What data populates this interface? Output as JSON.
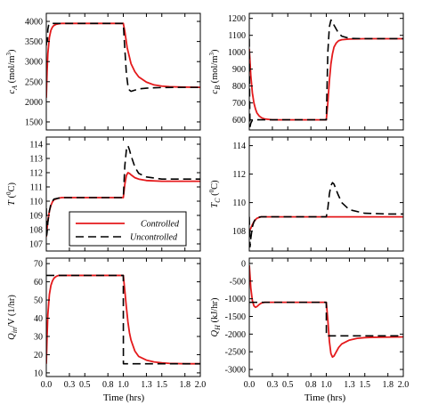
{
  "chart_data": [
    {
      "type": "line",
      "id": "ca",
      "ylabel_main": "c",
      "ylabel_sub": "A",
      "ylabel_unit": " (mol/m",
      "ylabel_sup": "3",
      "ylabel_close": ")",
      "xlim": [
        0,
        2
      ],
      "ylim": [
        1300,
        4200
      ],
      "yticks": [
        1500,
        2000,
        2500,
        3000,
        3500,
        4000
      ],
      "xticks": [
        0,
        0.3,
        0.5,
        0.8,
        1.0,
        1.3,
        1.5,
        1.8,
        2.0
      ],
      "series": [
        {
          "name": "Controlled",
          "style": "solid",
          "color": "#e41a1c",
          "x": [
            0,
            0.01,
            0.02,
            0.04,
            0.06,
            0.08,
            0.1,
            0.13,
            0.16,
            0.2,
            0.3,
            0.5,
            0.8,
            1.0,
            1.02,
            1.05,
            1.1,
            1.15,
            1.2,
            1.3,
            1.4,
            1.5,
            1.6,
            1.8,
            2.0
          ],
          "y": [
            2100,
            2750,
            3200,
            3600,
            3780,
            3860,
            3900,
            3930,
            3940,
            3950,
            3950,
            3950,
            3950,
            3950,
            3750,
            3350,
            2950,
            2750,
            2620,
            2490,
            2420,
            2390,
            2375,
            2365,
            2360
          ]
        },
        {
          "name": "Uncontrolled",
          "style": "dashed",
          "color": "#000000",
          "x": [
            0,
            0.01,
            0.015,
            0.02,
            0.03,
            0.05,
            0.1,
            0.3,
            0.5,
            0.8,
            1.0,
            1.02,
            1.04,
            1.06,
            1.08,
            1.1,
            1.15,
            1.2,
            1.3,
            1.5,
            1.8,
            2.0
          ],
          "y": [
            3400,
            3650,
            3500,
            3800,
            3900,
            3950,
            3950,
            3950,
            3950,
            3950,
            3950,
            3300,
            2700,
            2400,
            2290,
            2260,
            2290,
            2320,
            2340,
            2355,
            2360,
            2360
          ]
        }
      ]
    },
    {
      "type": "line",
      "id": "cb",
      "ylabel_main": "c",
      "ylabel_sub": "B",
      "ylabel_unit": " (mol/m",
      "ylabel_sup": "3",
      "ylabel_close": ")",
      "xlim": [
        0,
        2
      ],
      "ylim": [
        540,
        1230
      ],
      "yticks": [
        600,
        700,
        800,
        900,
        1000,
        1100,
        1200
      ],
      "xticks": [
        0,
        0.3,
        0.5,
        0.8,
        1.0,
        1.3,
        1.5,
        1.8,
        2.0
      ],
      "series": [
        {
          "name": "Controlled",
          "style": "solid",
          "color": "#e41a1c",
          "x": [
            0,
            0.02,
            0.04,
            0.06,
            0.08,
            0.1,
            0.13,
            0.16,
            0.2,
            0.3,
            0.5,
            0.8,
            1.0,
            1.02,
            1.04,
            1.06,
            1.08,
            1.1,
            1.13,
            1.16,
            1.2,
            1.3,
            1.5,
            1.8,
            2.0
          ],
          "y": [
            1020,
            860,
            760,
            700,
            665,
            640,
            622,
            612,
            605,
            600,
            600,
            600,
            600,
            700,
            830,
            930,
            990,
            1030,
            1055,
            1068,
            1074,
            1078,
            1080,
            1080,
            1080
          ]
        },
        {
          "name": "Uncontrolled",
          "style": "dashed",
          "color": "#000000",
          "x": [
            0,
            0.005,
            0.01,
            0.02,
            0.04,
            0.06,
            0.1,
            0.3,
            0.5,
            0.8,
            1.0,
            1.01,
            1.02,
            1.04,
            1.06,
            1.08,
            1.1,
            1.15,
            1.2,
            1.3,
            1.5,
            1.8,
            2.0
          ],
          "y": [
            1080,
            700,
            560,
            580,
            598,
            600,
            600,
            600,
            600,
            600,
            600,
            800,
            1000,
            1150,
            1190,
            1185,
            1160,
            1120,
            1095,
            1082,
            1080,
            1080,
            1080
          ]
        }
      ]
    },
    {
      "type": "line",
      "id": "T",
      "ylabel_main": "T",
      "ylabel_sub": "",
      "ylabel_unit": "  (",
      "ylabel_sup": "0",
      "ylabel_close": "C)",
      "xlim": [
        0,
        2
      ],
      "ylim": [
        106.5,
        114.5
      ],
      "yticks": [
        107,
        108,
        109,
        110,
        111,
        112,
        113,
        114
      ],
      "xticks": [
        0,
        0.3,
        0.5,
        0.8,
        1.0,
        1.3,
        1.5,
        1.8,
        2.0
      ],
      "series": [
        {
          "name": "Controlled",
          "style": "solid",
          "color": "#e41a1c",
          "x": [
            0,
            0.02,
            0.04,
            0.06,
            0.08,
            0.1,
            0.15,
            0.2,
            0.3,
            0.5,
            0.8,
            1.0,
            1.02,
            1.04,
            1.06,
            1.08,
            1.1,
            1.15,
            1.2,
            1.3,
            1.5,
            1.8,
            2.0
          ],
          "y": [
            107.5,
            108.6,
            109.3,
            109.7,
            109.95,
            110.1,
            110.2,
            110.25,
            110.25,
            110.25,
            110.25,
            110.25,
            111.2,
            111.8,
            112.0,
            111.95,
            111.85,
            111.65,
            111.55,
            111.45,
            111.4,
            111.4,
            111.4
          ]
        },
        {
          "name": "Uncontrolled",
          "style": "dashed",
          "color": "#000000",
          "x": [
            0,
            0.005,
            0.01,
            0.02,
            0.04,
            0.06,
            0.08,
            0.1,
            0.15,
            0.2,
            0.3,
            0.5,
            0.8,
            1.0,
            1.02,
            1.04,
            1.06,
            1.08,
            1.1,
            1.15,
            1.2,
            1.3,
            1.5,
            1.8,
            2.0
          ],
          "y": [
            109.5,
            107.6,
            107.8,
            108.5,
            109.3,
            109.8,
            110.0,
            110.15,
            110.2,
            110.25,
            110.25,
            110.25,
            110.25,
            110.25,
            112.5,
            113.6,
            113.9,
            113.6,
            113.2,
            112.4,
            111.95,
            111.7,
            111.55,
            111.55,
            111.55
          ]
        }
      ]
    },
    {
      "type": "line",
      "id": "Tc",
      "ylabel_main": "T",
      "ylabel_sub": "C",
      "ylabel_unit": "  (",
      "ylabel_sup": "0",
      "ylabel_close": "C)",
      "xlim": [
        0,
        2
      ],
      "ylim": [
        106.6,
        114.6
      ],
      "yticks": [
        108,
        110,
        112,
        114
      ],
      "xticks": [
        0,
        0.3,
        0.5,
        0.8,
        1.0,
        1.3,
        1.5,
        1.8,
        2.0
      ],
      "series": [
        {
          "name": "Controlled",
          "style": "solid",
          "color": "#e41a1c",
          "x": [
            0,
            0.02,
            0.04,
            0.06,
            0.08,
            0.1,
            0.15,
            0.2,
            0.3,
            0.5,
            0.8,
            1.0,
            1.3,
            1.5,
            1.8,
            2.0
          ],
          "y": [
            108.0,
            108.2,
            108.45,
            108.65,
            108.8,
            108.9,
            109.0,
            109.0,
            109.0,
            109.0,
            109.0,
            109.0,
            109.0,
            109.0,
            109.0,
            109.0
          ]
        },
        {
          "name": "Uncontrolled",
          "style": "dashed",
          "color": "#000000",
          "x": [
            0,
            0.01,
            0.02,
            0.04,
            0.06,
            0.08,
            0.1,
            0.15,
            0.2,
            0.3,
            0.5,
            0.8,
            1.0,
            1.02,
            1.04,
            1.06,
            1.08,
            1.1,
            1.15,
            1.2,
            1.3,
            1.5,
            1.8,
            2.0
          ],
          "y": [
            109.0,
            106.9,
            107.5,
            108.3,
            108.65,
            108.85,
            108.95,
            109.0,
            109.0,
            109.0,
            109.0,
            109.0,
            109.0,
            109.6,
            110.6,
            111.2,
            111.4,
            111.3,
            110.6,
            110.0,
            109.5,
            109.25,
            109.2,
            109.2
          ]
        }
      ]
    },
    {
      "type": "line",
      "id": "Qf",
      "ylabel_main": "Q",
      "ylabel_sub": "in",
      "ylabel_unit": "/V (1/hr)",
      "ylabel_sup": "",
      "ylabel_close": "",
      "xlim": [
        0,
        2
      ],
      "ylim": [
        8,
        73
      ],
      "yticks": [
        10,
        20,
        30,
        40,
        50,
        60,
        70
      ],
      "xticks": [
        0,
        0.3,
        0.5,
        0.8,
        1.0,
        1.3,
        1.5,
        1.8,
        2.0
      ],
      "series": [
        {
          "name": "Controlled",
          "style": "solid",
          "color": "#e41a1c",
          "x": [
            0,
            0.01,
            0.02,
            0.04,
            0.06,
            0.08,
            0.1,
            0.13,
            0.16,
            0.2,
            0.3,
            0.5,
            0.8,
            1.0,
            1.02,
            1.04,
            1.06,
            1.08,
            1.1,
            1.15,
            1.2,
            1.3,
            1.4,
            1.5,
            1.6,
            1.8,
            2.0
          ],
          "y": [
            15,
            30,
            42,
            53,
            58,
            60.5,
            62,
            63,
            63.5,
            63.5,
            63.5,
            63.5,
            63.5,
            63.5,
            55,
            46,
            38,
            32,
            28,
            22,
            19,
            17,
            16,
            15.5,
            15.2,
            15,
            15
          ]
        },
        {
          "name": "Uncontrolled",
          "style": "dashed",
          "color": "#000000",
          "x": [
            0,
            0.001,
            0.1,
            0.3,
            0.5,
            0.8,
            1.0,
            1.001,
            1.3,
            1.5,
            1.8,
            2.0
          ],
          "y": [
            63.5,
            63.5,
            63.5,
            63.5,
            63.5,
            63.5,
            63.5,
            15,
            15,
            15,
            15,
            15
          ]
        }
      ]
    },
    {
      "type": "line",
      "id": "QH",
      "ylabel_main": "Q",
      "ylabel_sub": "H",
      "ylabel_unit": " (kJ/hr)",
      "ylabel_sup": "",
      "ylabel_close": "",
      "xlim": [
        0,
        2
      ],
      "ylim": [
        -3200,
        150
      ],
      "yticks": [
        -3000,
        -2500,
        -2000,
        -1500,
        -1000,
        -500,
        0
      ],
      "xticks": [
        0,
        0.3,
        0.5,
        0.8,
        1.0,
        1.3,
        1.5,
        1.8,
        2.0
      ],
      "series": [
        {
          "name": "Controlled",
          "style": "solid",
          "color": "#e41a1c",
          "x": [
            0,
            0.02,
            0.04,
            0.06,
            0.08,
            0.1,
            0.13,
            0.16,
            0.2,
            0.3,
            0.5,
            0.8,
            1.0,
            1.02,
            1.04,
            1.06,
            1.08,
            1.1,
            1.13,
            1.16,
            1.2,
            1.3,
            1.4,
            1.5,
            1.6,
            1.8,
            2.0
          ],
          "y": [
            -50,
            -700,
            -1050,
            -1200,
            -1240,
            -1220,
            -1160,
            -1120,
            -1100,
            -1100,
            -1100,
            -1100,
            -1100,
            -1600,
            -2200,
            -2550,
            -2650,
            -2620,
            -2500,
            -2380,
            -2280,
            -2170,
            -2120,
            -2100,
            -2090,
            -2085,
            -2080
          ]
        },
        {
          "name": "Uncontrolled",
          "style": "dashed",
          "color": "#000000",
          "x": [
            0,
            0.001,
            0.1,
            0.3,
            0.5,
            0.8,
            1.0,
            1.001,
            1.3,
            1.5,
            1.8,
            2.0
          ],
          "y": [
            -1100,
            -1100,
            -1100,
            -1100,
            -1100,
            -1100,
            -1100,
            -2050,
            -2050,
            -2050,
            -2050,
            -2050
          ]
        }
      ]
    }
  ],
  "xlabel": "Time (hrs)",
  "xtick_labels": [
    "0.0",
    "0.3",
    "0.5",
    "0.8",
    "1.0",
    "1.3",
    "1.5",
    "1.8",
    "2.0"
  ],
  "legend": {
    "entries": [
      "Controlled",
      "Uncontrolled"
    ]
  }
}
